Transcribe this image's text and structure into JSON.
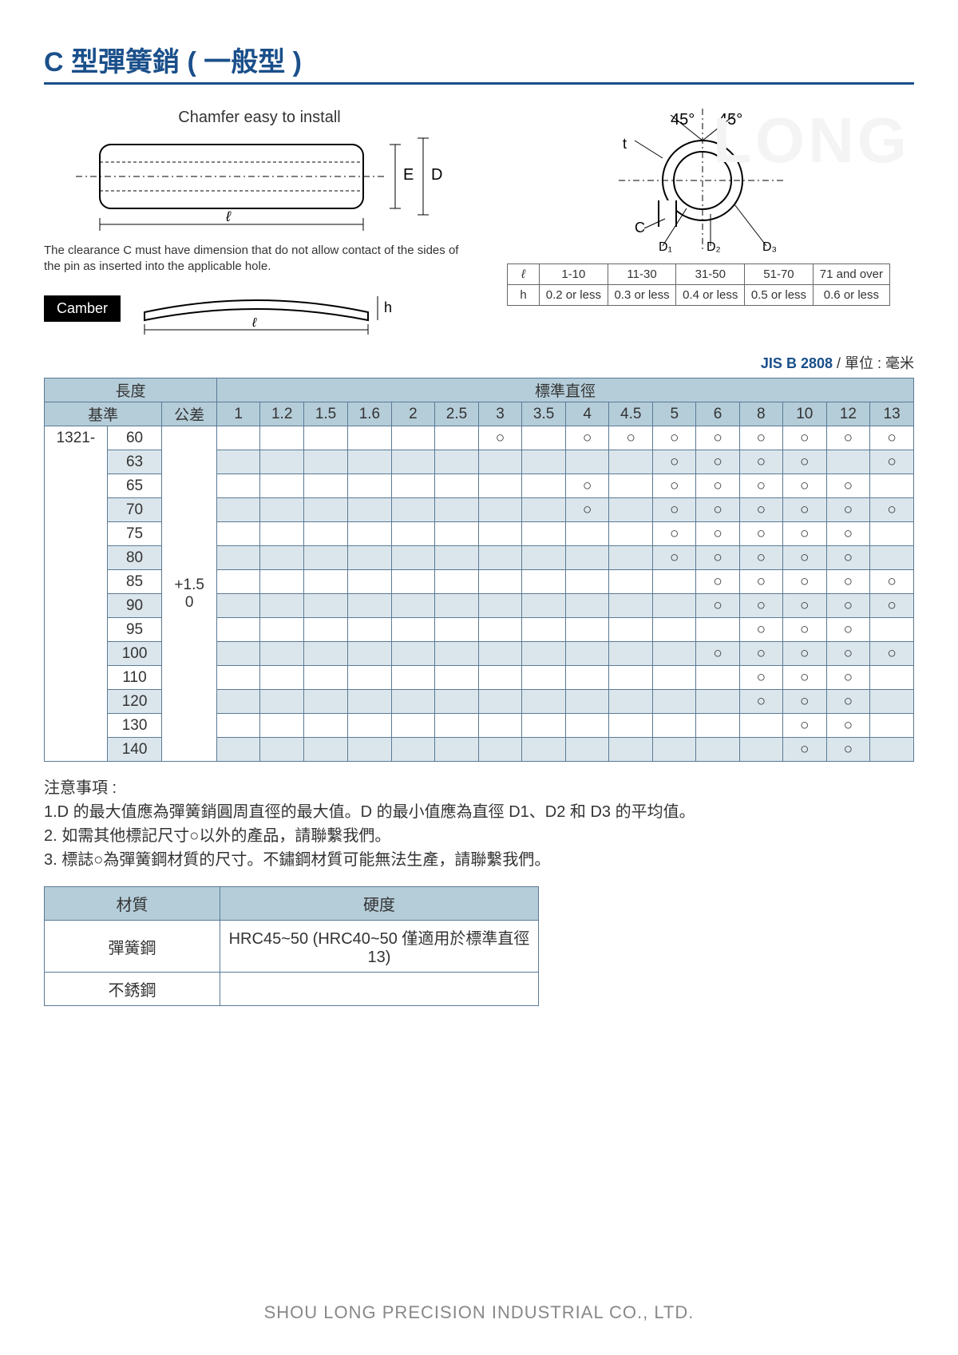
{
  "title": "C 型彈簧銷 ( 一般型 )",
  "watermark": "LONG",
  "diagram": {
    "chamfer_label": "Chamfer easy to install",
    "clearance_note": "The clearance C must have dimension that do not allow contact of the sides of the pin as inserted into the applicable hole.",
    "camber_label": "Camber",
    "dim_E": "E",
    "dim_D": "D",
    "dim_l": "ℓ",
    "dim_h": "h",
    "dim_t": "t",
    "dim_C": "C",
    "angle45a": "45°",
    "angle45b": "45°",
    "D1": "D₁",
    "D2": "D₂",
    "D3": "D₃"
  },
  "tolerance_table": {
    "row1_label": "ℓ",
    "row2_label": "h",
    "cols": [
      "1-10",
      "11-30",
      "31-50",
      "51-70",
      "71 and over"
    ],
    "vals": [
      "0.2 or less",
      "0.3 or less",
      "0.4 or less",
      "0.5 or less",
      "0.6 or less"
    ]
  },
  "spec_header": {
    "jis": "JIS B 2808",
    "unit": " / 單位 : 毫米"
  },
  "main_table": {
    "length_header": "長度",
    "diameter_header": "標準直徑",
    "base_header": "基準",
    "tolerance_header": "公差",
    "base_code": "1321-",
    "tolerance_value": "+1.5\n0",
    "diameters": [
      "1",
      "1.2",
      "1.5",
      "1.6",
      "2",
      "2.5",
      "3",
      "3.5",
      "4",
      "4.5",
      "5",
      "6",
      "8",
      "10",
      "12",
      "13"
    ],
    "rows": [
      {
        "len": "60",
        "marks": [
          "",
          "",
          "",
          "",
          "",
          "",
          "○",
          "",
          "○",
          "○",
          "○",
          "○",
          "○",
          "○",
          "○",
          "○"
        ]
      },
      {
        "len": "63",
        "marks": [
          "",
          "",
          "",
          "",
          "",
          "",
          "",
          "",
          "",
          "",
          "○",
          "○",
          "○",
          "○",
          "",
          "○"
        ]
      },
      {
        "len": "65",
        "marks": [
          "",
          "",
          "",
          "",
          "",
          "",
          "",
          "",
          "○",
          "",
          "○",
          "○",
          "○",
          "○",
          "○",
          ""
        ]
      },
      {
        "len": "70",
        "marks": [
          "",
          "",
          "",
          "",
          "",
          "",
          "",
          "",
          "○",
          "",
          "○",
          "○",
          "○",
          "○",
          "○",
          "○"
        ]
      },
      {
        "len": "75",
        "marks": [
          "",
          "",
          "",
          "",
          "",
          "",
          "",
          "",
          "",
          "",
          "○",
          "○",
          "○",
          "○",
          "○",
          ""
        ]
      },
      {
        "len": "80",
        "marks": [
          "",
          "",
          "",
          "",
          "",
          "",
          "",
          "",
          "",
          "",
          "○",
          "○",
          "○",
          "○",
          "○",
          ""
        ]
      },
      {
        "len": "85",
        "marks": [
          "",
          "",
          "",
          "",
          "",
          "",
          "",
          "",
          "",
          "",
          "",
          "○",
          "○",
          "○",
          "○",
          "○"
        ]
      },
      {
        "len": "90",
        "marks": [
          "",
          "",
          "",
          "",
          "",
          "",
          "",
          "",
          "",
          "",
          "",
          "○",
          "○",
          "○",
          "○",
          "○"
        ]
      },
      {
        "len": "95",
        "marks": [
          "",
          "",
          "",
          "",
          "",
          "",
          "",
          "",
          "",
          "",
          "",
          "",
          "○",
          "○",
          "○",
          ""
        ]
      },
      {
        "len": "100",
        "marks": [
          "",
          "",
          "",
          "",
          "",
          "",
          "",
          "",
          "",
          "",
          "",
          "○",
          "○",
          "○",
          "○",
          "○"
        ]
      },
      {
        "len": "110",
        "marks": [
          "",
          "",
          "",
          "",
          "",
          "",
          "",
          "",
          "",
          "",
          "",
          "",
          "○",
          "○",
          "○",
          ""
        ]
      },
      {
        "len": "120",
        "marks": [
          "",
          "",
          "",
          "",
          "",
          "",
          "",
          "",
          "",
          "",
          "",
          "",
          "○",
          "○",
          "○",
          ""
        ]
      },
      {
        "len": "130",
        "marks": [
          "",
          "",
          "",
          "",
          "",
          "",
          "",
          "",
          "",
          "",
          "",
          "",
          "",
          "○",
          "○",
          ""
        ]
      },
      {
        "len": "140",
        "marks": [
          "",
          "",
          "",
          "",
          "",
          "",
          "",
          "",
          "",
          "",
          "",
          "",
          "",
          "○",
          "○",
          ""
        ]
      }
    ]
  },
  "notes": {
    "heading": "注意事項 :",
    "n1": "1.D 的最大值應為彈簧銷圓周直徑的最大值。D 的最小值應為直徑 D1、D2 和 D3 的平均值。",
    "n2": "2. 如需其他標記尺寸○以外的產品，請聯繫我們。",
    "n3": "3. 標誌○為彈簧鋼材質的尺寸。不鏽鋼材質可能無法生產，請聯繫我們。"
  },
  "material_table": {
    "h1": "材質",
    "h2": "硬度",
    "r1c1": "彈簧鋼",
    "r1c2": "HRC45~50 (HRC40~50 僅適用於標準直徑 13)",
    "r2c1": "不銹鋼",
    "r2c2": ""
  },
  "footer": "SHOU LONG PRECISION INDUSTRIAL CO., LTD.",
  "colors": {
    "accent": "#1a4f8a",
    "table_header_bg": "#b5cdd9",
    "table_alt_bg": "#dbe6ec",
    "border": "#5a7a95"
  }
}
